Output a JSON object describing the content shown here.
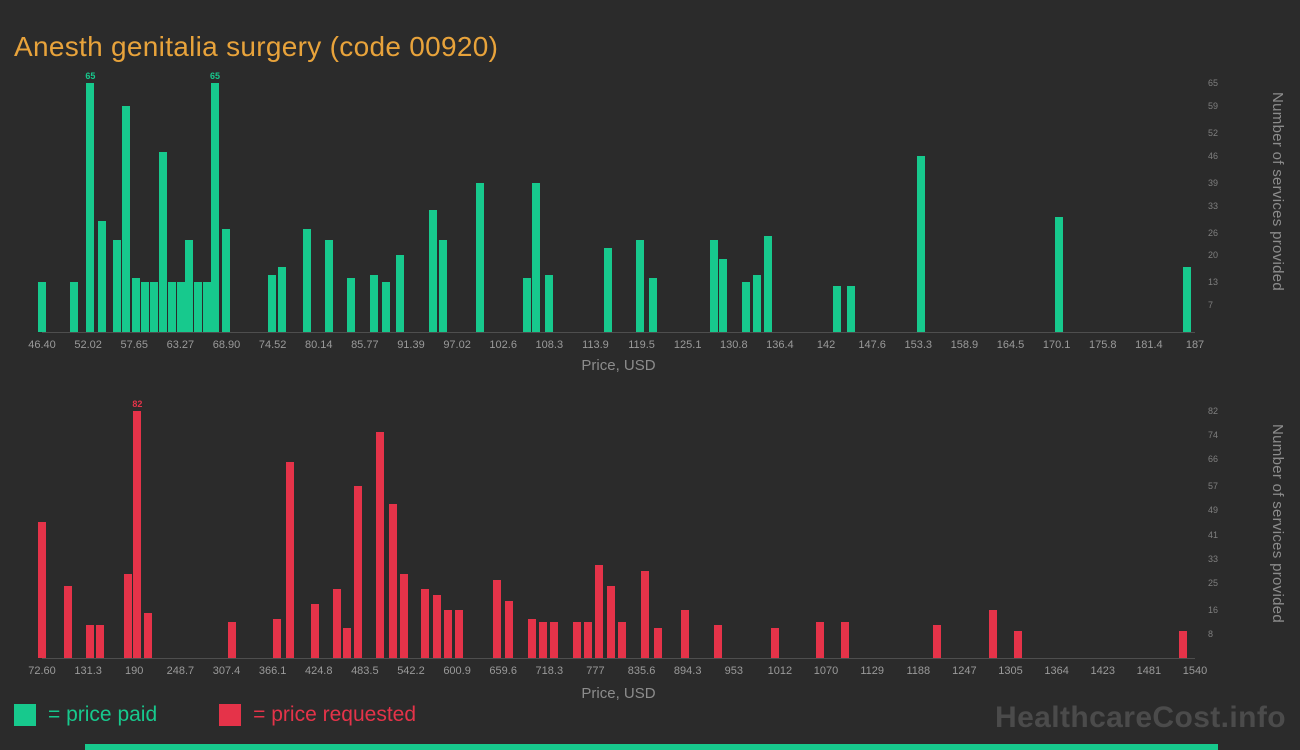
{
  "title": "Anesth genitalia surgery (code 00920)",
  "watermark": "HealthcareCost.info",
  "colors": {
    "background": "#2b2b2b",
    "paid": "#17c98d",
    "requested": "#e53349",
    "title": "#e8a33b",
    "axis_text": "#8c8c8c",
    "tick_text": "#9a9a9a",
    "watermark": "#4b4b4b"
  },
  "legend": [
    {
      "label": "= price paid",
      "color_key": "paid"
    },
    {
      "label": "= price requested",
      "color_key": "requested"
    }
  ],
  "chart_data": [
    {
      "type": "bar",
      "name": "price-paid",
      "title": "Anesth genitalia surgery (code 00920)",
      "color": "#17c98d",
      "xlabel": "Price, USD",
      "ylabel": "Number of services provided",
      "x_range": [
        46.4,
        187
      ],
      "y_max": 69,
      "grid": false,
      "legend_position": "bottom-left",
      "x_ticks": [
        "46.40",
        "52.02",
        "57.65",
        "63.27",
        "68.90",
        "74.52",
        "80.14",
        "85.77",
        "91.39",
        "97.02",
        "102.6",
        "108.3",
        "113.9",
        "119.5",
        "125.1",
        "130.8",
        "136.4",
        "142",
        "147.6",
        "153.3",
        "158.9",
        "164.5",
        "170.1",
        "175.8",
        "181.4",
        "187"
      ],
      "y_ticks": [
        65,
        59,
        52,
        46,
        39,
        33,
        26,
        20,
        13,
        7
      ],
      "bars": [
        {
          "x": 46.4,
          "y": 13
        },
        {
          "x": 50.3,
          "y": 13
        },
        {
          "x": 52.3,
          "y": 65,
          "label": "65"
        },
        {
          "x": 53.7,
          "y": 29
        },
        {
          "x": 55.6,
          "y": 24
        },
        {
          "x": 56.7,
          "y": 59
        },
        {
          "x": 57.9,
          "y": 14
        },
        {
          "x": 59.0,
          "y": 13
        },
        {
          "x": 60.1,
          "y": 13
        },
        {
          "x": 61.2,
          "y": 47
        },
        {
          "x": 62.3,
          "y": 13
        },
        {
          "x": 63.4,
          "y": 13
        },
        {
          "x": 64.3,
          "y": 24
        },
        {
          "x": 65.4,
          "y": 13
        },
        {
          "x": 66.5,
          "y": 13
        },
        {
          "x": 67.5,
          "y": 65,
          "label": "65"
        },
        {
          "x": 68.8,
          "y": 27
        },
        {
          "x": 74.5,
          "y": 15
        },
        {
          "x": 75.7,
          "y": 17
        },
        {
          "x": 78.7,
          "y": 27
        },
        {
          "x": 81.4,
          "y": 24
        },
        {
          "x": 84.1,
          "y": 14
        },
        {
          "x": 86.9,
          "y": 15
        },
        {
          "x": 88.4,
          "y": 13
        },
        {
          "x": 90.0,
          "y": 20
        },
        {
          "x": 94.1,
          "y": 32
        },
        {
          "x": 95.3,
          "y": 24
        },
        {
          "x": 99.8,
          "y": 39
        },
        {
          "x": 105.6,
          "y": 14
        },
        {
          "x": 106.7,
          "y": 39
        },
        {
          "x": 108.2,
          "y": 15
        },
        {
          "x": 115.4,
          "y": 22
        },
        {
          "x": 119.3,
          "y": 24
        },
        {
          "x": 120.9,
          "y": 14
        },
        {
          "x": 128.3,
          "y": 24
        },
        {
          "x": 129.5,
          "y": 19
        },
        {
          "x": 132.2,
          "y": 13
        },
        {
          "x": 133.6,
          "y": 15
        },
        {
          "x": 134.9,
          "y": 25
        },
        {
          "x": 143.4,
          "y": 12
        },
        {
          "x": 145.0,
          "y": 12
        },
        {
          "x": 153.6,
          "y": 46
        },
        {
          "x": 170.4,
          "y": 30
        },
        {
          "x": 186.0,
          "y": 17
        }
      ]
    },
    {
      "type": "bar",
      "name": "price-requested",
      "title": "Anesth genitalia surgery (code 00920)",
      "color": "#e53349",
      "xlabel": "Price, USD",
      "ylabel": "Number of services provided",
      "x_range": [
        72.6,
        1540
      ],
      "y_max": 87,
      "grid": false,
      "legend_position": "bottom-left",
      "x_ticks": [
        "72.60",
        "131.3",
        "190",
        "248.7",
        "307.4",
        "366.1",
        "424.8",
        "483.5",
        "542.2",
        "600.9",
        "659.6",
        "718.3",
        "777",
        "835.6",
        "894.3",
        "953",
        "1012",
        "1070",
        "1129",
        "1188",
        "1247",
        "1305",
        "1364",
        "1423",
        "1481",
        "1540"
      ],
      "y_ticks": [
        82,
        74,
        66,
        57,
        49,
        41,
        33,
        25,
        16,
        8
      ],
      "bars": [
        {
          "x": 72.6,
          "y": 45
        },
        {
          "x": 106,
          "y": 24
        },
        {
          "x": 134,
          "y": 11
        },
        {
          "x": 146,
          "y": 11
        },
        {
          "x": 182,
          "y": 28
        },
        {
          "x": 194,
          "y": 82,
          "label": "82"
        },
        {
          "x": 207,
          "y": 15
        },
        {
          "x": 314,
          "y": 12
        },
        {
          "x": 372,
          "y": 13
        },
        {
          "x": 388,
          "y": 65
        },
        {
          "x": 420,
          "y": 18
        },
        {
          "x": 448,
          "y": 23
        },
        {
          "x": 461,
          "y": 10
        },
        {
          "x": 475,
          "y": 57
        },
        {
          "x": 503,
          "y": 75
        },
        {
          "x": 519,
          "y": 51
        },
        {
          "x": 533,
          "y": 28
        },
        {
          "x": 560,
          "y": 23
        },
        {
          "x": 575,
          "y": 21
        },
        {
          "x": 589,
          "y": 16
        },
        {
          "x": 603,
          "y": 16
        },
        {
          "x": 652,
          "y": 26
        },
        {
          "x": 667,
          "y": 19
        },
        {
          "x": 696,
          "y": 13
        },
        {
          "x": 710,
          "y": 12
        },
        {
          "x": 724,
          "y": 12
        },
        {
          "x": 754,
          "y": 12
        },
        {
          "x": 768,
          "y": 12
        },
        {
          "x": 782,
          "y": 31
        },
        {
          "x": 797,
          "y": 24
        },
        {
          "x": 811,
          "y": 12
        },
        {
          "x": 840,
          "y": 29
        },
        {
          "x": 857,
          "y": 10
        },
        {
          "x": 891,
          "y": 16
        },
        {
          "x": 933,
          "y": 11
        },
        {
          "x": 1006,
          "y": 10
        },
        {
          "x": 1063,
          "y": 12
        },
        {
          "x": 1095,
          "y": 12
        },
        {
          "x": 1212,
          "y": 11
        },
        {
          "x": 1283,
          "y": 16
        },
        {
          "x": 1315,
          "y": 9
        },
        {
          "x": 1525,
          "y": 9
        }
      ]
    }
  ]
}
